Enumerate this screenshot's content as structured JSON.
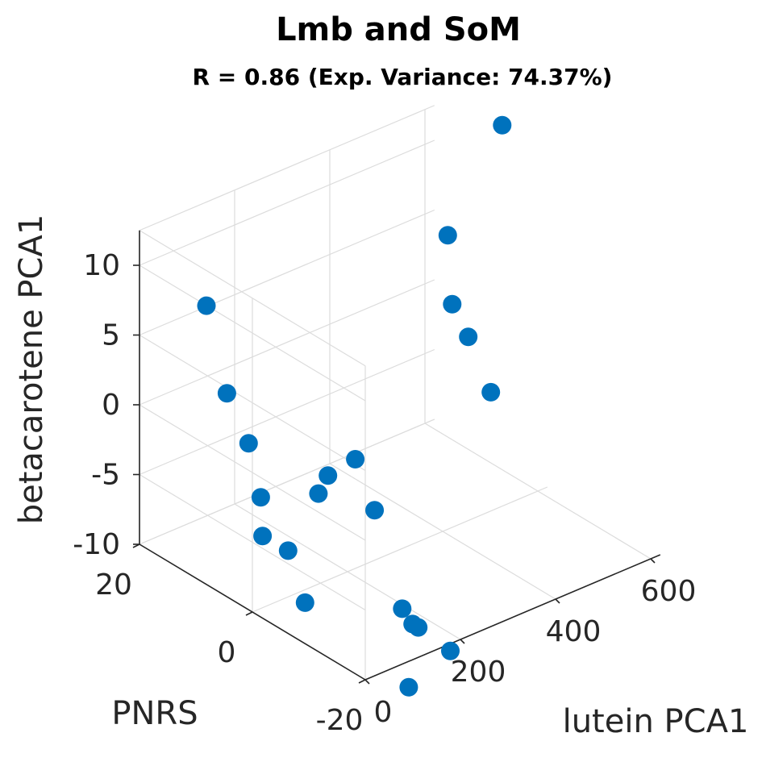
{
  "chart_data": {
    "type": "scatter",
    "title": "Lmb and SoM",
    "subtitle": "R = 0.86 (Exp. Variance: 74.37%)",
    "xlabel": "lutein PCA1",
    "ylabel": "PNRS",
    "zlabel": "betacarotene PCA1",
    "x_ticks": [
      "0",
      "200",
      "400",
      "600"
    ],
    "y_ticks": [
      "-20",
      "0",
      "20"
    ],
    "z_ticks": [
      "-10",
      "-5",
      "0",
      "5",
      "10"
    ],
    "grid": true,
    "projection": "3d",
    "marker_color": "#0072BD",
    "points": [
      {
        "x": 620,
        "y": 8,
        "z": 14
      },
      {
        "x": 470,
        "y": 5,
        "z": 9
      },
      {
        "x": 420,
        "y": 0,
        "z": 6
      },
      {
        "x": 430,
        "y": -2,
        "z": 4
      },
      {
        "x": 430,
        "y": -6,
        "z": 1
      },
      {
        "x": 200,
        "y": 25,
        "z": 3
      },
      {
        "x": 160,
        "y": 18,
        "z": -1
      },
      {
        "x": 240,
        "y": 2,
        "z": -3
      },
      {
        "x": 170,
        "y": 15,
        "z": -4
      },
      {
        "x": 230,
        "y": 6,
        "z": -5
      },
      {
        "x": 210,
        "y": 6,
        "z": -6
      },
      {
        "x": 245,
        "y": -1,
        "z": -6
      },
      {
        "x": 160,
        "y": 12,
        "z": -7
      },
      {
        "x": 140,
        "y": 10,
        "z": -9
      },
      {
        "x": 170,
        "y": 8,
        "z": -10
      },
      {
        "x": 220,
        "y": -8,
        "z": -11
      },
      {
        "x": 230,
        "y": -9,
        "z": -12
      },
      {
        "x": 230,
        "y": -10,
        "z": -12
      },
      {
        "x": 170,
        "y": 5,
        "z": -13
      },
      {
        "x": 250,
        "y": -14,
        "z": -13
      },
      {
        "x": 210,
        "y": -10,
        "z": -16
      }
    ]
  }
}
